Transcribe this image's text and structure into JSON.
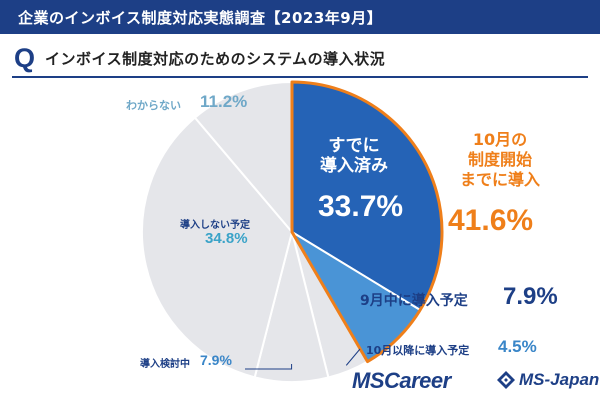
{
  "header": {
    "title": "企業のインボイス制度対応実態調査【2023年9月】"
  },
  "question": {
    "letter": "Q",
    "text": "インボイス制度対応のためのシステムの導入状況"
  },
  "chart_data": {
    "type": "pie",
    "slices": [
      {
        "label": "すでに導入済み",
        "value": 33.7,
        "value_text": "33.7%",
        "color": "#2563b6"
      },
      {
        "label": "9月中に導入予定",
        "value": 7.9,
        "value_text": "7.9%",
        "color": "#4a94d6"
      },
      {
        "label": "10月以降に導入予定",
        "value": 4.5,
        "value_text": "4.5%",
        "color": "#e5e6ea"
      },
      {
        "label": "導入検討中",
        "value": 7.9,
        "value_text": "7.9%",
        "color": "#e5e6ea"
      },
      {
        "label": "導入しない予定",
        "value": 34.8,
        "value_text": "34.8%",
        "color": "#e5e6ea"
      },
      {
        "label": "わからない",
        "value": 11.2,
        "value_text": "11.2%",
        "color": "#e5e6ea"
      }
    ],
    "group": {
      "label_lines": [
        "10月の",
        "制度開始",
        "までに導入"
      ],
      "value_text": "41.6%",
      "color": "#ef7f1a"
    },
    "done_label_lines": [
      "すでに",
      "導入済み"
    ]
  },
  "logos": {
    "left": "MSCareer",
    "right": "MS-Japan"
  }
}
